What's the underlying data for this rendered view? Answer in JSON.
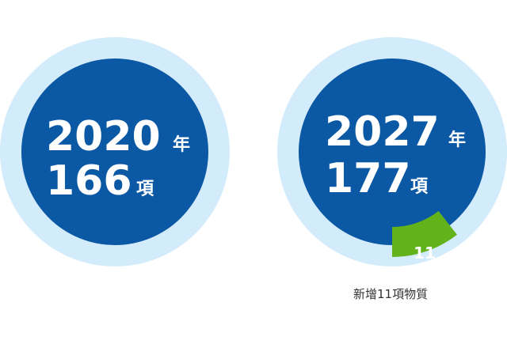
{
  "colors": {
    "ring": "#d3ecfb",
    "disc": "#0b58a5",
    "added": "#62b31b",
    "text": "#ffffff",
    "note": "#333333"
  },
  "chart_data": {
    "type": "pie",
    "charts": [
      {
        "year": "2020",
        "year_unit": "年",
        "count": "166",
        "count_unit": "項",
        "total": 166,
        "added": 0
      },
      {
        "year": "2027",
        "year_unit": "年",
        "count": "177",
        "count_unit": "項",
        "total": 177,
        "added": 11,
        "added_label": "11",
        "note": "新增11項物質"
      }
    ]
  }
}
